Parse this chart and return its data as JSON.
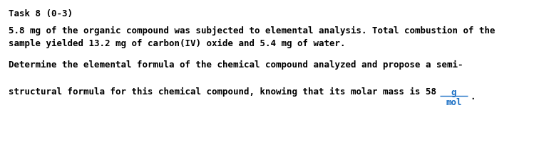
{
  "title": "Task 8 (0-3)",
  "line1": "5.8 mg of the organic compound was subjected to elemental analysis. Total combustion of the",
  "line2": "sample yielded 13.2 mg of carbon(IV) oxide and 5.4 mg of water.",
  "line3": "Determine the elemental formula of the chemical compound analyzed and propose a semi-",
  "line4_prefix": "structural formula for this chemical compound, knowing that its molar mass is 58 ",
  "fraction_num": "g",
  "fraction_den": "mol",
  "period": ".",
  "bg_color": "#ffffff",
  "text_color": "#000000",
  "fraction_color": "#1a6fc4",
  "title_fontsize": 9.0,
  "body_fontsize": 9.0,
  "font_family": "DejaVu Sans Mono"
}
